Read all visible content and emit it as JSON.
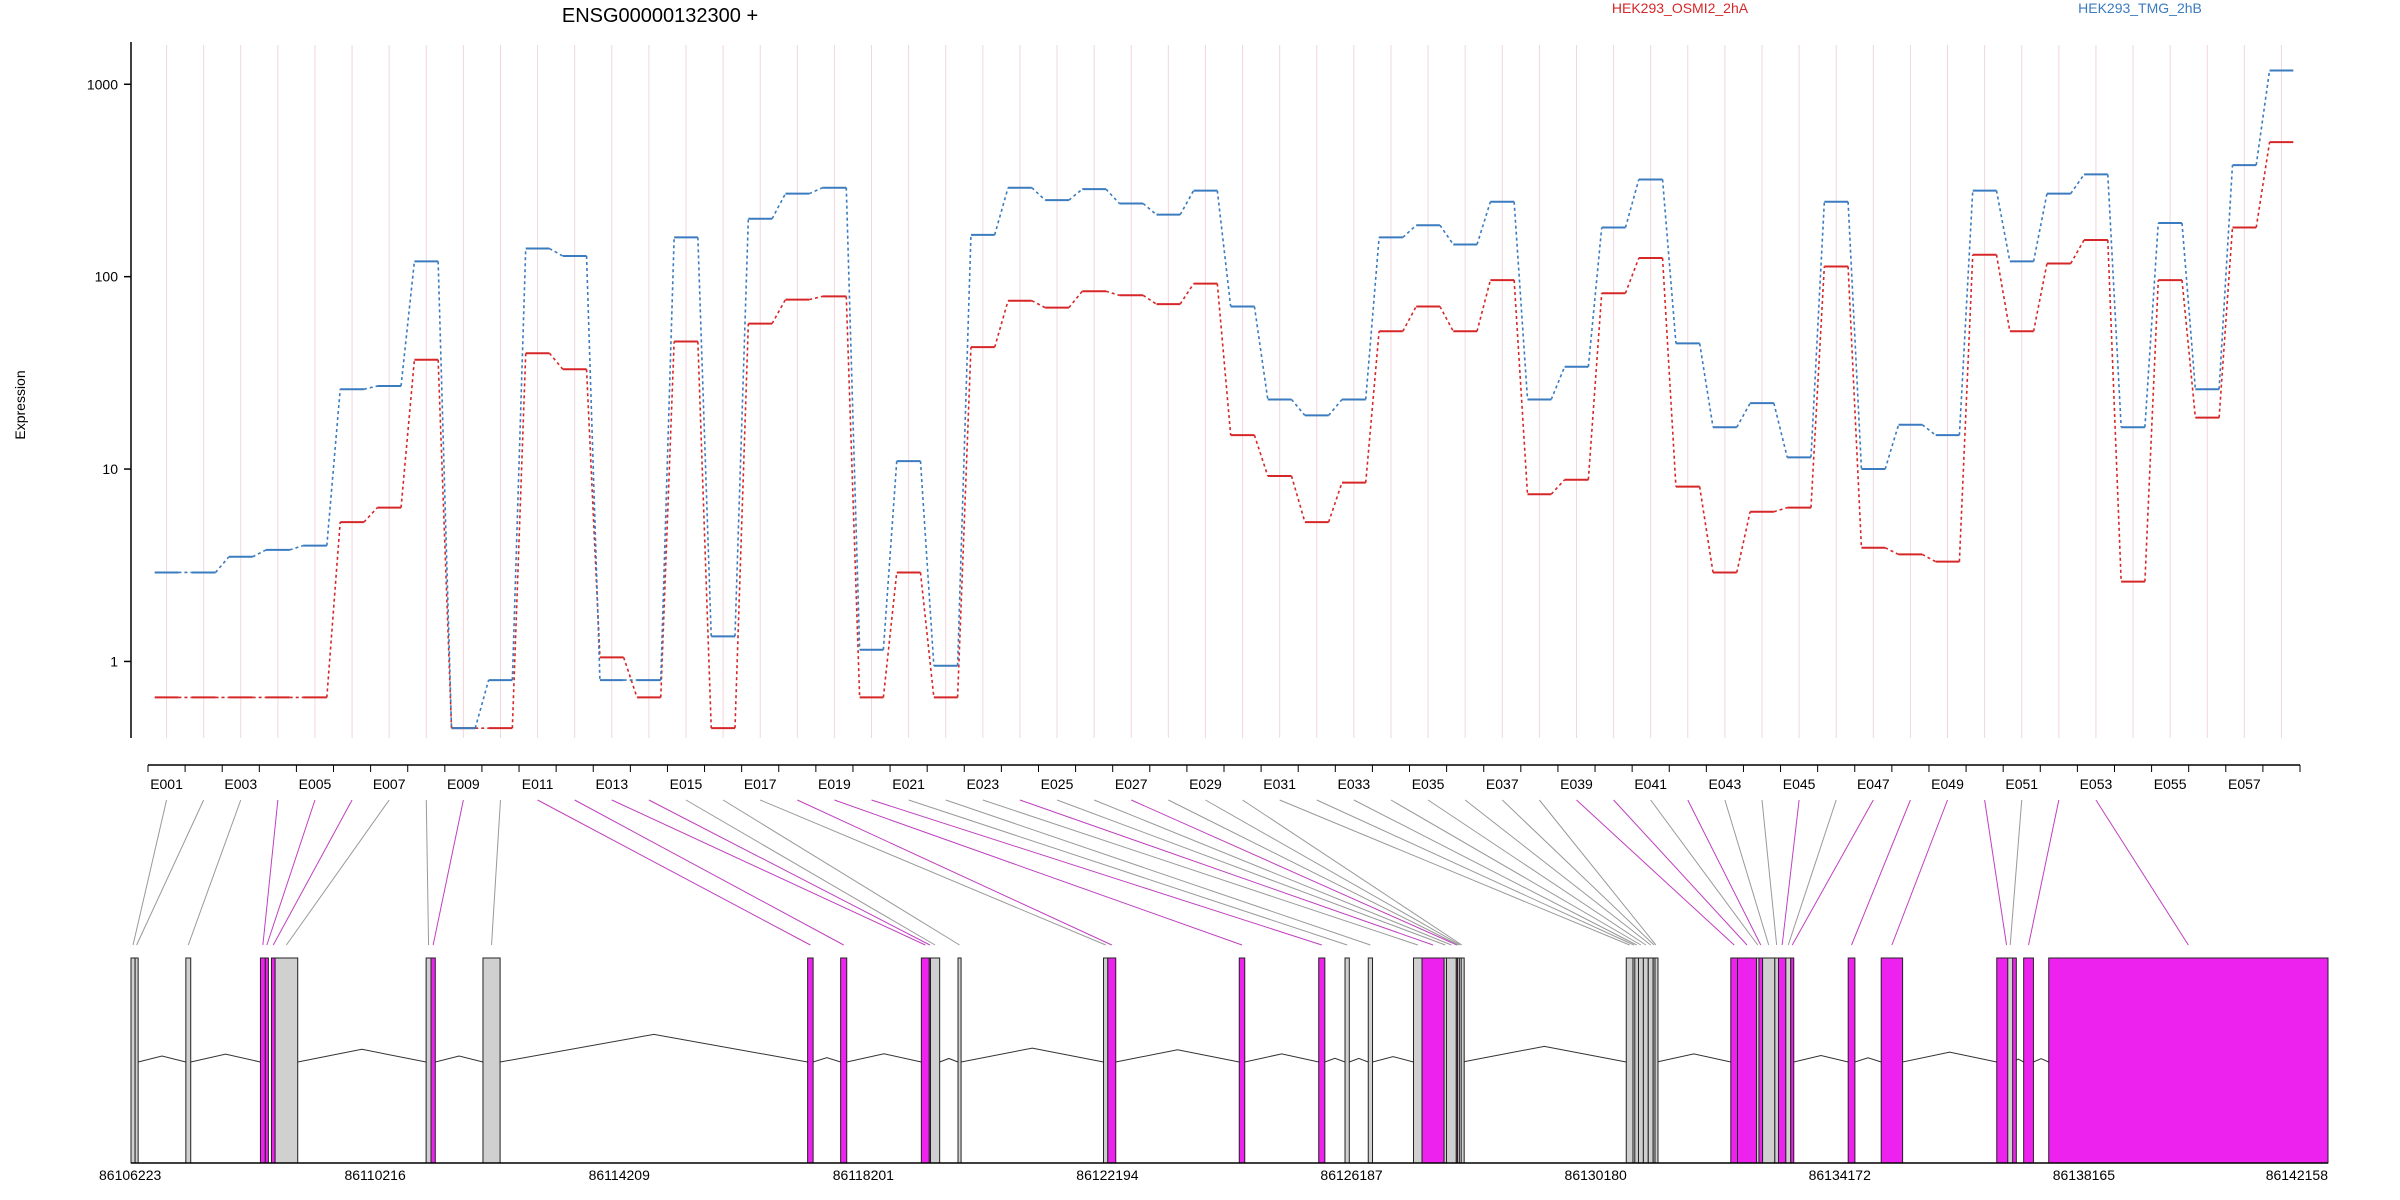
{
  "chart_data": {
    "type": "line",
    "title": "ENSG00000132300 +",
    "ylabel": "Expression",
    "yscale": "log",
    "ylim": [
      0.4,
      1600
    ],
    "yticks": [
      1,
      10,
      100,
      1000
    ],
    "ytick_labels": [
      "1",
      "10",
      "100",
      "1000"
    ],
    "exon_labels": [
      "E001",
      "E003",
      "E005",
      "E007",
      "E009",
      "E011",
      "E013",
      "E015",
      "E017",
      "E019",
      "E021",
      "E023",
      "E025",
      "E027",
      "E029",
      "E031",
      "E033",
      "E035",
      "E037",
      "E039",
      "E041",
      "E043",
      "E045",
      "E047",
      "E049",
      "E051",
      "E053",
      "E055",
      "E057"
    ],
    "series": [
      {
        "name": "HEK293_OSMI2_2hA",
        "color": "#d62728",
        "values": [
          0.65,
          0.65,
          0.65,
          0.65,
          0.65,
          5.3,
          6.3,
          37,
          0.45,
          0.45,
          40,
          33,
          1.05,
          0.65,
          46,
          0.45,
          57,
          76,
          79,
          0.65,
          2.9,
          0.65,
          43,
          75,
          69,
          84,
          80,
          72,
          92,
          15,
          9.2,
          5.3,
          8.5,
          52,
          70,
          52,
          96,
          7.4,
          8.8,
          82,
          125,
          8.1,
          2.9,
          6,
          6.3,
          113,
          3.9,
          3.6,
          3.3,
          130,
          52,
          117,
          155,
          2.6,
          96,
          18.5,
          180,
          500
        ]
      },
      {
        "name": "HEK293_TMG_2hB",
        "color": "#3b7bbf",
        "values": [
          2.9,
          2.9,
          3.5,
          3.8,
          4,
          26,
          27,
          120,
          0.45,
          0.8,
          140,
          128,
          0.8,
          0.8,
          160,
          1.35,
          200,
          270,
          290,
          1.15,
          11,
          0.95,
          165,
          290,
          250,
          285,
          240,
          210,
          280,
          70,
          23,
          19,
          23,
          160,
          185,
          147,
          245,
          23,
          34,
          180,
          320,
          45,
          16.5,
          22,
          11.5,
          245,
          10,
          17,
          15,
          280,
          120,
          270,
          340,
          16.5,
          190,
          26,
          380,
          1180
        ]
      }
    ],
    "genome_coords": [
      86106223,
      86110216,
      86114209,
      86118201,
      86122194,
      86126187,
      86130180,
      86134172,
      86138165,
      86142158
    ],
    "genome_coord_labels": [
      "86106223",
      "86110216",
      "86114209",
      "86118201",
      "86122194",
      "86126187",
      "86130180",
      "86134172",
      "86138165",
      "86142158"
    ],
    "exons": [
      {
        "id": "E001",
        "start": 86106223,
        "end": 86106290,
        "diff": false
      },
      {
        "id": "E002",
        "start": 86106290,
        "end": 86106340,
        "diff": false
      },
      {
        "id": "E003",
        "start": 86107120,
        "end": 86107200,
        "diff": false
      },
      {
        "id": "E004",
        "start": 86108340,
        "end": 86108420,
        "diff": true
      },
      {
        "id": "E005",
        "start": 86108420,
        "end": 86108470,
        "diff": true
      },
      {
        "id": "E006",
        "start": 86108520,
        "end": 86108580,
        "diff": true
      },
      {
        "id": "E007",
        "start": 86108580,
        "end": 86108950,
        "diff": false
      },
      {
        "id": "E008",
        "start": 86111050,
        "end": 86111130,
        "diff": false
      },
      {
        "id": "E009",
        "start": 86111130,
        "end": 86111200,
        "diff": true
      },
      {
        "id": "E010",
        "start": 86111980,
        "end": 86112260,
        "diff": false
      },
      {
        "id": "E011",
        "start": 86117290,
        "end": 86117380,
        "diff": true
      },
      {
        "id": "E012",
        "start": 86117830,
        "end": 86117930,
        "diff": true
      },
      {
        "id": "E013",
        "start": 86119150,
        "end": 86119280,
        "diff": true
      },
      {
        "id": "E014",
        "start": 86119280,
        "end": 86119300,
        "diff": true
      },
      {
        "id": "E015",
        "start": 86119300,
        "end": 86119450,
        "diff": false
      },
      {
        "id": "E016",
        "start": 86119750,
        "end": 86119800,
        "diff": false
      },
      {
        "id": "E017",
        "start": 86122130,
        "end": 86122200,
        "diff": false
      },
      {
        "id": "E018",
        "start": 86122200,
        "end": 86122330,
        "diff": true
      },
      {
        "id": "E019",
        "start": 86124350,
        "end": 86124440,
        "diff": true
      },
      {
        "id": "E020",
        "start": 86125650,
        "end": 86125750,
        "diff": true
      },
      {
        "id": "E021",
        "start": 86126080,
        "end": 86126150,
        "diff": false
      },
      {
        "id": "E022",
        "start": 86126460,
        "end": 86126530,
        "diff": false
      },
      {
        "id": "E023",
        "start": 86127200,
        "end": 86127340,
        "diff": false
      },
      {
        "id": "E024",
        "start": 86127340,
        "end": 86127700,
        "diff": true
      },
      {
        "id": "E025",
        "start": 86127700,
        "end": 86127740,
        "diff": false
      },
      {
        "id": "E026",
        "start": 86127740,
        "end": 86127900,
        "diff": false
      },
      {
        "id": "E027",
        "start": 86127900,
        "end": 86127920,
        "diff": true
      },
      {
        "id": "E028",
        "start": 86127920,
        "end": 86127950,
        "diff": false
      },
      {
        "id": "E029",
        "start": 86127950,
        "end": 86127980,
        "diff": false
      },
      {
        "id": "E030",
        "start": 86127980,
        "end": 86128000,
        "diff": false
      },
      {
        "id": "E031",
        "start": 86130680,
        "end": 86130790,
        "diff": false
      },
      {
        "id": "E032",
        "start": 86130790,
        "end": 86130820,
        "diff": false
      },
      {
        "id": "E033",
        "start": 86130820,
        "end": 86130880,
        "diff": false
      },
      {
        "id": "E034",
        "start": 86130880,
        "end": 86130960,
        "diff": false
      },
      {
        "id": "E035",
        "start": 86130960,
        "end": 86131040,
        "diff": false
      },
      {
        "id": "E036",
        "start": 86131040,
        "end": 86131120,
        "diff": false
      },
      {
        "id": "E037",
        "start": 86131120,
        "end": 86131150,
        "diff": false
      },
      {
        "id": "E038",
        "start": 86131150,
        "end": 86131180,
        "diff": false
      },
      {
        "id": "E039",
        "start": 86132390,
        "end": 86132500,
        "diff": true
      },
      {
        "id": "E040",
        "start": 86132500,
        "end": 86132810,
        "diff": true
      },
      {
        "id": "E041",
        "start": 86132810,
        "end": 86132850,
        "diff": false
      },
      {
        "id": "E042",
        "start": 86132850,
        "end": 86132910,
        "diff": true
      },
      {
        "id": "E043",
        "start": 86132910,
        "end": 86133110,
        "diff": false
      },
      {
        "id": "E044",
        "start": 86133110,
        "end": 86133170,
        "diff": false
      },
      {
        "id": "E045",
        "start": 86133170,
        "end": 86133290,
        "diff": true
      },
      {
        "id": "E046",
        "start": 86133290,
        "end": 86133370,
        "diff": false
      },
      {
        "id": "E047",
        "start": 86133370,
        "end": 86133420,
        "diff": true
      },
      {
        "id": "E048",
        "start": 86134310,
        "end": 86134420,
        "diff": true
      },
      {
        "id": "E049",
        "start": 86134850,
        "end": 86135200,
        "diff": true
      },
      {
        "id": "E050",
        "start": 86136740,
        "end": 86137060,
        "diff": true
      },
      {
        "id": "E051",
        "start": 86136920,
        "end": 86137000,
        "diff": false
      },
      {
        "id": "E052",
        "start": 86137180,
        "end": 86137340,
        "diff": true
      },
      {
        "id": "E053",
        "start": 86137590,
        "end": 86142158,
        "diff": true
      }
    ],
    "colors": {
      "exon_default": "#d0d0d0",
      "exon_diff": "#ee22ee",
      "intron": "#333333"
    }
  }
}
